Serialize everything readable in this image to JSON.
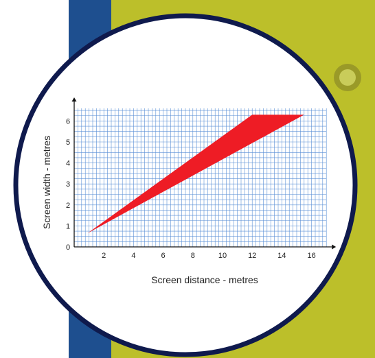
{
  "colors": {
    "blue_strip": "#1e4f8f",
    "yellow_panel": "#bcbf2a",
    "circle_border": "#0f1a4d",
    "grid": "#5a8fd6",
    "band": "#ee1c25"
  },
  "chart_data": {
    "type": "area",
    "xlabel": "Screen distance - metres",
    "ylabel": "Screen width - metres",
    "xlim": [
      0,
      17
    ],
    "ylim": [
      0,
      6.6
    ],
    "x_ticks": [
      2,
      4,
      6,
      8,
      10,
      12,
      14,
      16
    ],
    "y_ticks": [
      0,
      1,
      2,
      3,
      4,
      5,
      6
    ],
    "grid": true,
    "series": [
      {
        "upper": [
          [
            0.9,
            0.65
          ],
          [
            12.0,
            6.3
          ],
          [
            15.5,
            6.3
          ]
        ],
        "lower": [
          [
            0.9,
            0.65
          ],
          [
            15.5,
            6.3
          ]
        ]
      }
    ]
  }
}
